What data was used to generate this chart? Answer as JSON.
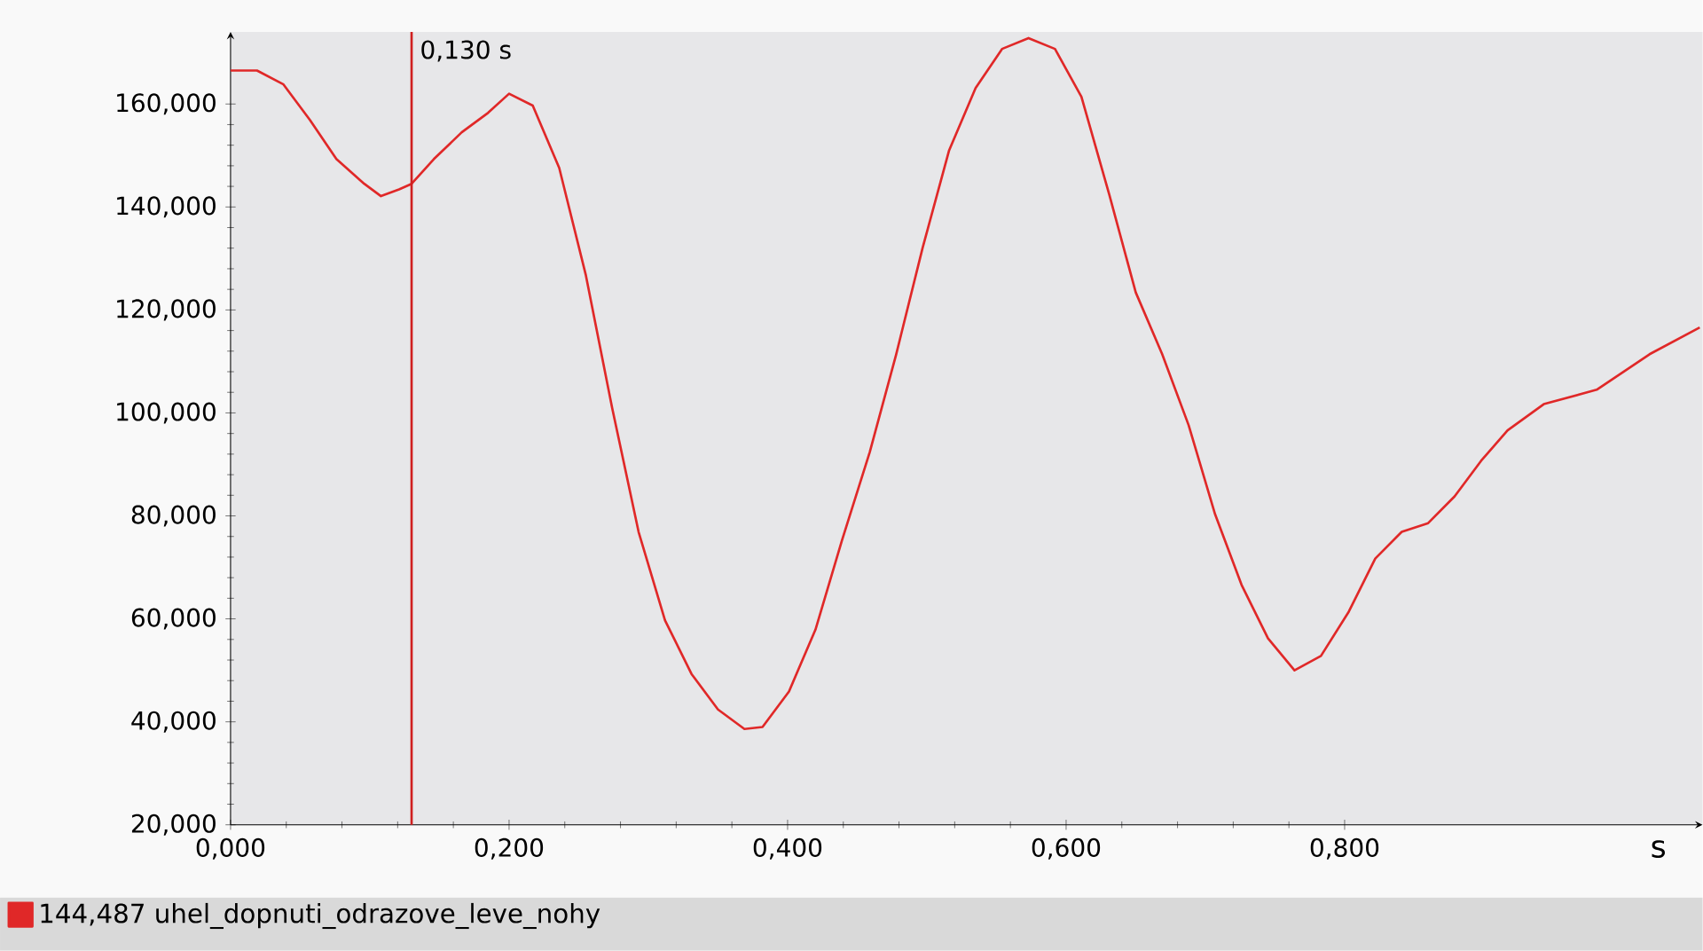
{
  "chart_data": {
    "type": "line",
    "xlabel": "s",
    "xlim": [
      0,
      1.057
    ],
    "ylim": [
      20,
      174
    ],
    "xticks": [
      {
        "value": 0,
        "label": "0,000"
      },
      {
        "value": 0.2,
        "label": "0,200"
      },
      {
        "value": 0.4,
        "label": "0,400"
      },
      {
        "value": 0.6,
        "label": "0,600"
      },
      {
        "value": 0.8,
        "label": "0,800"
      }
    ],
    "yticks": [
      {
        "value": 20,
        "label": "20,000"
      },
      {
        "value": 40,
        "label": "40,000"
      },
      {
        "value": 60,
        "label": "60,000"
      },
      {
        "value": 80,
        "label": "80,000"
      },
      {
        "value": 100,
        "label": "100,000"
      },
      {
        "value": 120,
        "label": "120,000"
      },
      {
        "value": 140,
        "label": "140,000"
      },
      {
        "value": 160,
        "label": "160,000"
      }
    ],
    "x": [
      0,
      0.019,
      0.038,
      0.057,
      0.076,
      0.096,
      0.108,
      0.121,
      0.13,
      0.146,
      0.166,
      0.185,
      0.2,
      0.217,
      0.236,
      0.255,
      0.274,
      0.293,
      0.312,
      0.331,
      0.35,
      0.369,
      0.382,
      0.401,
      0.42,
      0.439,
      0.459,
      0.478,
      0.497,
      0.516,
      0.535,
      0.554,
      0.573,
      0.592,
      0.611,
      0.631,
      0.65,
      0.669,
      0.688,
      0.707,
      0.726,
      0.745,
      0.764,
      0.783,
      0.803,
      0.822,
      0.841,
      0.86,
      0.879,
      0.898,
      0.917,
      0.943,
      0.981,
      1.019,
      1.055
    ],
    "series": [
      {
        "name": "144,487  uhel_dopnuti_odrazove_leve_nohy",
        "color": "#e02828",
        "values": [
          166.5,
          166.5,
          163.8,
          156.9,
          149.3,
          144.5,
          142.1,
          143.4,
          144.5,
          149.3,
          154.5,
          158.3,
          162,
          159.7,
          147.6,
          126.9,
          101,
          76.9,
          59.7,
          49.3,
          42.4,
          38.6,
          39,
          45.9,
          57.9,
          75.2,
          92.4,
          111.4,
          132.1,
          151,
          163.1,
          170.7,
          172.8,
          170.7,
          161.4,
          142.4,
          123.4,
          111.4,
          97.6,
          80.3,
          66.6,
          56.2,
          50,
          52.8,
          61.4,
          71.7,
          76.9,
          78.6,
          83.8,
          90.7,
          96.6,
          101.7,
          104.5,
          111.4,
          116.6
        ]
      }
    ],
    "ref_lines": [
      {
        "axis": "x",
        "value": 0.13,
        "label": "0,130 s",
        "color": "#d02020"
      }
    ],
    "legend": "bottom"
  }
}
